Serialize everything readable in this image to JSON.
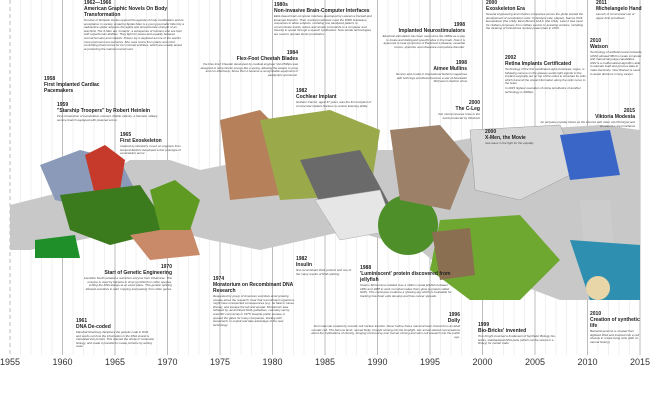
{
  "axis": {
    "ticks": [
      "1955",
      "1960",
      "1965",
      "1970",
      "1975",
      "1980",
      "1985",
      "1990",
      "1995",
      "2000",
      "2005",
      "2010",
      "2015"
    ]
  },
  "colors": {
    "band": "#c8c8c8",
    "green": "#5fa22a",
    "grid": "#d6d6d6"
  },
  "events": [
    {
      "year": "1962—1966",
      "title": "American Graphic Novels On Body Transformation",
      "desc": "Number of fantastic stories opened the agenda of body modification and its acceptance in society. Amazing Spider-Man is a young journalist bitten by a radioactive spider acquires the agility and proportionate strength of an arachnid. The X-Men are 'mutants', a subspecies of humans who are born with superhuman abilities. They fight for peace and equality between normal humans and mutants. Poison Ivy is depicted as one of the world's most prominent eco-terrorists. She uses toxins from plants and mind controlling pheromones for her criminal activities, which are usually aimed at protecting the natural environment."
    },
    {
      "year": "1958",
      "title": "First Implanted Cardiac Pacemakers",
      "desc": ""
    },
    {
      "year": "1959",
      "title": "\"Starship Troopers\" by Robert Heinlein",
      "desc": "First introduction of exoskeleton concept. Mobile Infantry, a futuristic military service branch equipped with powered armor."
    },
    {
      "year": "1965",
      "title": "First Exoskeleton",
      "desc": "Inspired by Heinlein's novel, an engineer from General Electric developed a first prototype of exoskeleton armor."
    },
    {
      "year": "1980s",
      "title": "Non-invasive Brain-Computer Interfaces",
      "desc": "EEG-based brain-computer interface developed by Lawrence Farwell and Emanuel Donchin. Their 'mental prosthesis' used the P300 brainwave responses to allow subjects, including one paralyzed patient, to communicate words, letters and simple commands to a computer and thereby to speak through a speech synthesizer. Now similar technologies are used to operate bionic prosthetics."
    },
    {
      "year": "1984",
      "title": "Flex-Foot Cheetah Blades",
      "desc": "the Flex-Foot Cheetah developed by medical engineer Van Phillips was designed to store kinetic energy like a spring, allowing the wearer to jump and run effectively. Since then it became a recognizable equipment of paralympic sportsmen."
    },
    {
      "year": "1982",
      "title": "Cochlear Implant",
      "desc": "Graham Carrick, aged 37 years, was the first recipient of commercial implant Nucleus to restore listening ability."
    },
    {
      "year": "1998",
      "title": "Implanted Neurostimulators",
      "desc": "Electrical stimulation has been used since the 1960s as a way to locate and distinguish specific sites in the brain. Now it is approved to treat symptoms of Parkinson's disease, essential tremor, dystonia, and obsessive-compulsive disorder."
    },
    {
      "year": "1998",
      "title": "Aimee Mullins",
      "desc": "Runner and model in international fashion magazines with both legs prosthesis became a star of Alexander McQueen's fashion show"
    },
    {
      "year": "2000",
      "title": "The C-Leg",
      "desc": "first microprocessor knee in the world produced by Ottobock"
    },
    {
      "year": "2000",
      "title": "X-Men, the Movie",
      "desc": "new wave in the fight for the equality"
    },
    {
      "year": "2000",
      "title": "Exoskeleton Era",
      "desc": "Several engineering and robotics companies across the globe started the development of exoskeleton suits: Cyberdyne HAL (Japan), Sarcos XOS Exoskeleton (the USA), Ekso Bionics HULC (the USA). Later it was used for civilians purposes: from military service to assisting workers, including the cleaning of Fukushima nuclear power plant in 2013."
    },
    {
      "year": "2002",
      "title": "Retina Implants Certificated",
      "desc": "Technology of the first certificated sight prosthesis, Argus, is following camera on the glasses sends light signals to the implant surgically put on top of the retina to stimulate its cells, which transmit the visual information along the optic nerve to the brain.",
      "desc2": "In 2015 highest resolution of retina prosthetics of another technology is 2000px."
    },
    {
      "year": "2011",
      "title": "Michelangelo Hand",
      "desc": "Launch of commercial use of upper-limb prosthesis"
    },
    {
      "year": "2010",
      "title": "Watson",
      "desc": "Technology of artificial neural networks (ANN) allowed IBM to create computer with natural language capabilities. ANN is a mathematical algorithm able to educate itself and process data to make decisions. Now Watson is used to assist dicisions in lung cancer."
    },
    {
      "year": "2015",
      "title": "Viktoria Modesta",
      "desc": "An amputee popstar blows up the internet with video clip Prototype and an attentive leg prosthesis"
    },
    {
      "year": "1970",
      "title": "Start of Genetic Engineering",
      "desc": "Hamilton Smith isolated a restriction enzyme from influenzae. This enzyme is used by bacteria to chop up DNA from other species, cutting the DNA always at an exact place. This genetic splicing allowed scientists to start 'copying and pasting' from other genes."
    },
    {
      "year": "1961",
      "title": "DNA De-coded",
      "desc": "Marshall Nirenberg deciphers the genetic code in DNA and works out how the information in the DNA strand is translated into protein. This opened the whole of molecular biology, and made it possible to create proteins by writing code."
    },
    {
      "year": "1974",
      "title": "Moratorium on Recombinant DNA Research",
      "desc": "Requested by group of American scientists amid growing unease about the research. Fear that recombinant organisms might have unexpected consequences (e.g. be fatal or cause illness), and escape the lab and spread. Moratorium was followed by recombinant DNA guidelines, voluntary set by scientific community in 1975. Despite public unease, it opened the gates for many companies, starting with Genentech, to exploit and take advantage of the new technology."
    },
    {
      "year": "1982",
      "title": "Insulin",
      "desc": "first recombinant DNA product and one of the many results of DNA splicing"
    },
    {
      "year": "1988",
      "title": "'Luminiscent' protein discovered from jellyfish",
      "desc": "Osamu Shimomura isolated over a million crystal jellyfish between 1961 and 1988 to work out what makes them glow (a protein called GFP). This could give medicine a 'glowing tag' which is invaluable for tracking how brain cells develop and how cancer spreads."
    },
    {
      "year": "1996",
      "title": "Dolly",
      "desc": "First mammal created by somatic cell nuclear transfer. Never before had a mammal been cloned from an adult somatic cell. This famous lamb, named Dolly, brought cloning into the limelight. Her arrival started conversations about the implications of cloning, bringing controversy over human cloning and stem cell research into the public eye."
    },
    {
      "year": "1999",
      "title": "Bio-Bricks' invented",
      "desc": "Tom Knight invented a fundament of Synthetic Biology bio-bricks, standardised DNA parts (which can be stored in a library) for certain traits."
    },
    {
      "year": "2010",
      "title": "Creation of synthetic life",
      "desc": "Bacterial genome is created from digitised DNA and inserted into a cell chassis to create living cells (with no natural history)"
    }
  ]
}
